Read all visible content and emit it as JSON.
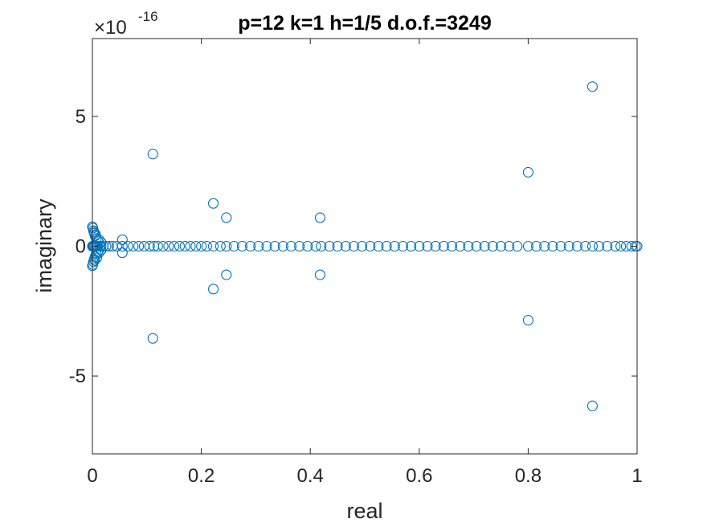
{
  "chart_data": {
    "type": "scatter",
    "title": "p=12 k=1 h=1/5 d.o.f.=3249",
    "xlabel": "real",
    "ylabel": "imaginary",
    "xlim": [
      0,
      1
    ],
    "ylim": [
      -8e-16,
      8e-16
    ],
    "y_exponent_base": "×10",
    "y_exponent_power": "-16",
    "xticks": [
      0,
      0.2,
      0.4,
      0.6,
      0.8,
      1
    ],
    "xtick_labels": [
      "0",
      "0.2",
      "0.4",
      "0.6",
      "0.8",
      "1"
    ],
    "yticks": [
      -5e-16,
      0,
      5e-16
    ],
    "ytick_labels": [
      "-5",
      "0",
      "5"
    ],
    "grid": false,
    "legend": "none",
    "marker": "open-circle",
    "color": "#0072BD",
    "series": [
      {
        "x": [
          0.0,
          0.0007,
          0.0015,
          0.0025,
          0.004,
          0.006,
          0.008,
          0.01,
          0.013,
          0.016,
          0.02,
          0.025,
          0.03,
          0.037,
          0.045,
          0.055,
          0.065,
          0.075,
          0.085,
          0.095,
          0.105,
          0.113,
          0.12,
          0.13,
          0.14,
          0.15,
          0.16,
          0.17,
          0.18,
          0.19,
          0.2,
          0.21,
          0.222,
          0.235,
          0.246,
          0.26,
          0.275,
          0.29,
          0.305,
          0.32,
          0.335,
          0.35,
          0.365,
          0.38,
          0.395,
          0.41,
          0.42,
          0.435,
          0.45,
          0.465,
          0.48,
          0.495,
          0.51,
          0.525,
          0.54,
          0.555,
          0.57,
          0.585,
          0.6,
          0.615,
          0.63,
          0.645,
          0.66,
          0.675,
          0.69,
          0.705,
          0.72,
          0.735,
          0.75,
          0.765,
          0.78,
          0.8,
          0.815,
          0.83,
          0.845,
          0.86,
          0.875,
          0.89,
          0.905,
          0.918,
          0.93,
          0.945,
          0.96,
          0.97,
          0.98,
          0.99,
          0.997,
          1.0,
          0.0,
          0.001,
          0.002,
          0.0035,
          0.005,
          0.007,
          0.01,
          0.0,
          0.001,
          0.002,
          0.0035,
          0.005,
          0.007,
          0.01,
          0.003,
          0.006,
          0.004,
          0.008,
          0.012,
          0.016,
          0.012,
          0.016,
          0.055,
          0.055,
          0.111,
          0.111,
          0.222,
          0.222,
          0.246,
          0.246,
          0.418,
          0.418,
          0.8,
          0.8,
          0.918,
          0.918
        ],
        "y": [
          0,
          0,
          0,
          0,
          0,
          0,
          0,
          0,
          0,
          0,
          0,
          0,
          0,
          0,
          0,
          0,
          0,
          0,
          0,
          0,
          0,
          0,
          0,
          0,
          0,
          0,
          0,
          0,
          0,
          0,
          0,
          0,
          0,
          0,
          0,
          0,
          0,
          0,
          0,
          0,
          0,
          0,
          0,
          0,
          0,
          0,
          0,
          0,
          0,
          0,
          0,
          0,
          0,
          0,
          0,
          0,
          0,
          0,
          0,
          0,
          0,
          0,
          0,
          0,
          0,
          0,
          0,
          0,
          0,
          0,
          0,
          0,
          0,
          0,
          0,
          0,
          0,
          0,
          0,
          0,
          0,
          0,
          0,
          0,
          0,
          0,
          0,
          0,
          7.5e-17,
          7e-17,
          6e-17,
          5e-17,
          4e-17,
          3e-17,
          2e-17,
          -7.5e-17,
          -7e-17,
          -6e-17,
          -5e-17,
          -4e-17,
          -3e-17,
          -2e-17,
          5.5e-17,
          4.5e-17,
          -5.5e-17,
          -4.5e-17,
          2.5e-17,
          1.5e-17,
          -2.5e-17,
          -1.5e-17,
          2.5e-17,
          -2.5e-17,
          3.55e-16,
          -3.55e-16,
          1.65e-16,
          -1.65e-16,
          1.1e-16,
          -1.1e-16,
          1.1e-16,
          -1.1e-16,
          2.85e-16,
          -2.85e-16,
          6.15e-16,
          -6.15e-16
        ]
      }
    ]
  }
}
